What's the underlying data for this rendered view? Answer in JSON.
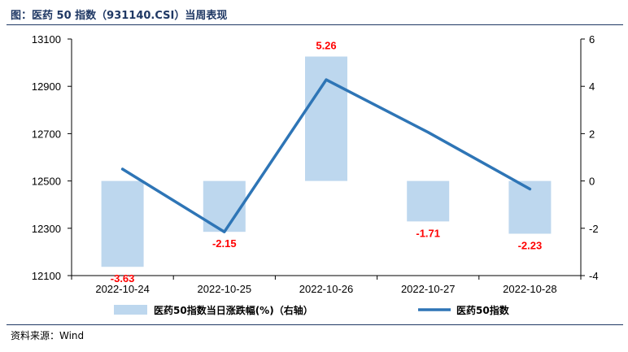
{
  "header": {
    "title": "图：医药 50 指数（931140.CSI）当周表现"
  },
  "footer": {
    "source": "资料来源：Wind"
  },
  "colors": {
    "bar": "#bdd7ee",
    "line": "#2e75b6",
    "label": "#ff0000",
    "rule": "#1f3864"
  },
  "chart_data": {
    "type": "bar+line",
    "categories": [
      "2022-10-24",
      "2022-10-25",
      "2022-10-26",
      "2022-10-27",
      "2022-10-28"
    ],
    "series": [
      {
        "name": "医药50指数当日涨跌幅(%)（右轴）",
        "type": "bar",
        "axis": "right",
        "values": [
          -3.63,
          -2.15,
          5.26,
          -1.71,
          -2.23
        ],
        "labels": [
          "-3.63",
          "-2.15",
          "5.26",
          "-1.71",
          "-2.23"
        ]
      },
      {
        "name": "医药50指数",
        "type": "line",
        "axis": "left",
        "values": [
          12550,
          12285,
          12928,
          12706,
          12466
        ]
      }
    ],
    "left_axis": {
      "range": [
        12100,
        13100
      ],
      "ticks": [
        "12100",
        "12300",
        "12500",
        "12700",
        "12900",
        "13100"
      ]
    },
    "right_axis": {
      "range": [
        -4,
        6
      ],
      "ticks": [
        "-4",
        "-2",
        "0",
        "2",
        "4",
        "6"
      ]
    },
    "legend_position": "bottom",
    "grid": false
  }
}
